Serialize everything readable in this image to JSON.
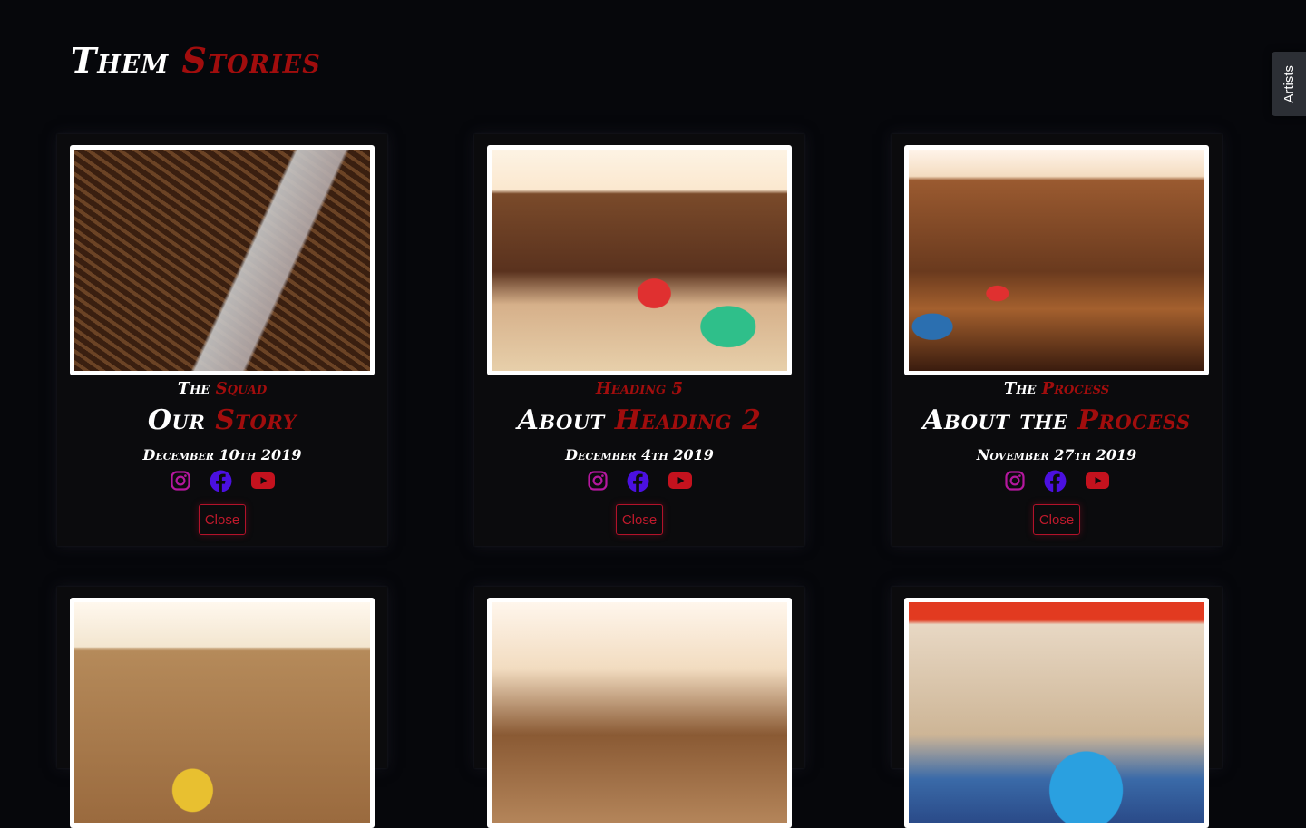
{
  "page_title": {
    "word1": "Them",
    "word2": "Stories"
  },
  "side_tab": {
    "label": "Artists"
  },
  "cards": [
    {
      "kicker_white": "The",
      "kicker_red": "Squad",
      "heading_white": "Our",
      "heading_red": "Story",
      "date": "December 10th 2019",
      "close_label": "Close",
      "image": "subway-tracks-photo"
    },
    {
      "kicker_white": "",
      "kicker_red": "Heading 5",
      "heading_white": "About",
      "heading_red": "Heading 2",
      "date": "December 4th 2019",
      "close_label": "Close",
      "image": "graffiti-warehouse-photo"
    },
    {
      "kicker_white": "The",
      "kicker_red": "Process",
      "heading_white": "About the",
      "heading_red": "Process",
      "date": "November 27th 2019",
      "close_label": "Close",
      "image": "graffiti-factory-photo"
    },
    {
      "image": "graffiti-wall-photo"
    },
    {
      "image": "saturdays-only-building-photo"
    },
    {
      "image": "graffiti-storefront-photo"
    }
  ],
  "social_icons": [
    {
      "name": "instagram-icon",
      "color": "#b5179e"
    },
    {
      "name": "facebook-icon",
      "color": "#4b10e0"
    },
    {
      "name": "youtube-icon",
      "color": "#c4121e"
    }
  ],
  "colors": {
    "accent_red": "#a10d0d",
    "background": "#06070b",
    "card": "#0b0b0d"
  }
}
